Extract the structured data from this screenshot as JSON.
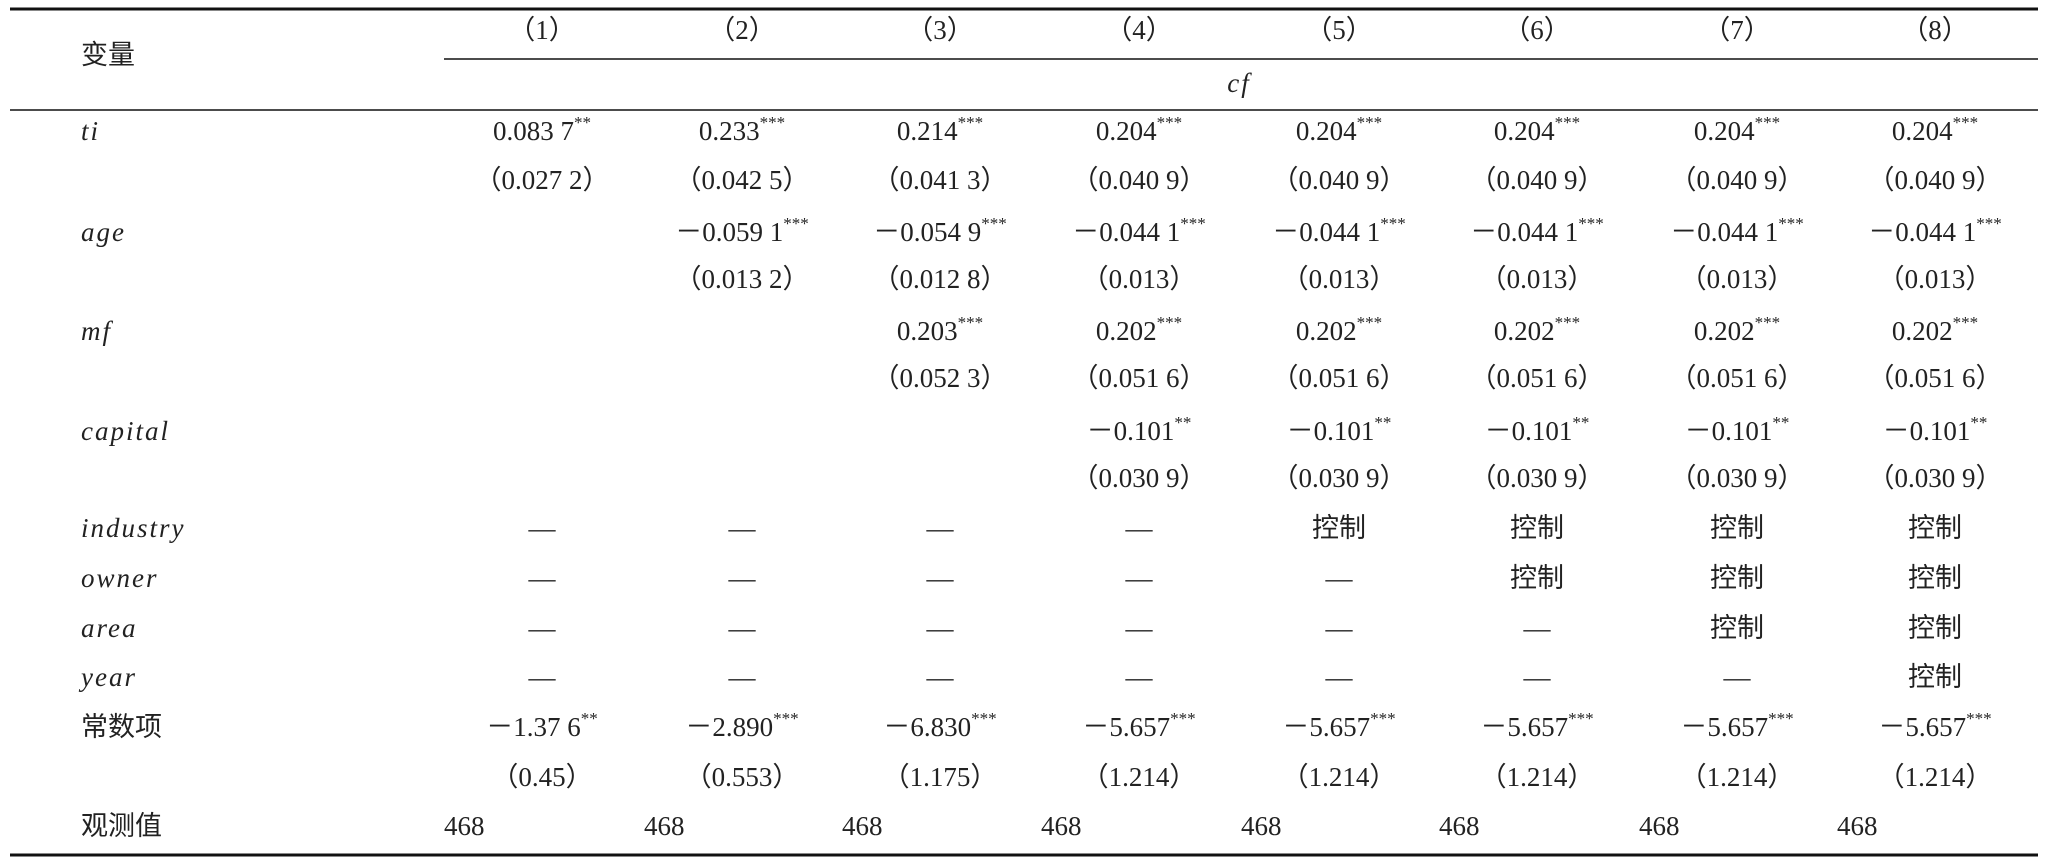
{
  "table": {
    "variable_label": "变量",
    "columns": [
      "（1）",
      "（2）",
      "（3）",
      "（4）",
      "（5）",
      "（6）",
      "（7）",
      "（8）"
    ],
    "dependent": "cf",
    "rows": [
      {
        "label": "ti",
        "cells": [
          {
            "v": "0.083 7",
            "sig": "**"
          },
          {
            "v": "0.233",
            "sig": "***"
          },
          {
            "v": "0.214",
            "sig": "***"
          },
          {
            "v": "0.204",
            "sig": "***"
          },
          {
            "v": "0.204",
            "sig": "***"
          },
          {
            "v": "0.204",
            "sig": "***"
          },
          {
            "v": "0.204",
            "sig": "***"
          },
          {
            "v": "0.204",
            "sig": "***"
          }
        ]
      },
      {
        "label": null,
        "cells": [
          "（0.027 2）",
          "（0.042 5）",
          "（0.041 3）",
          "（0.040 9）",
          "（0.040 9）",
          "（0.040 9）",
          "（0.040 9）",
          "（0.040 9）"
        ]
      },
      {
        "label": "age",
        "cells": [
          null,
          {
            "v": "－0.059 1",
            "sig": "***"
          },
          {
            "v": "－0.054 9",
            "sig": "***"
          },
          {
            "v": "－0.044 1",
            "sig": "***"
          },
          {
            "v": "－0.044 1",
            "sig": "***"
          },
          {
            "v": "－0.044 1",
            "sig": "***"
          },
          {
            "v": "－0.044 1",
            "sig": "***"
          },
          {
            "v": "－0.044 1",
            "sig": "***"
          }
        ]
      },
      {
        "label": null,
        "cells": [
          null,
          "（0.013 2）",
          "（0.012 8）",
          "（0.013）",
          "（0.013）",
          "（0.013）",
          "（0.013）",
          "（0.013）"
        ]
      },
      {
        "label": "mf",
        "cells": [
          null,
          null,
          {
            "v": "0.203",
            "sig": "***"
          },
          {
            "v": "0.202",
            "sig": "***"
          },
          {
            "v": "0.202",
            "sig": "***"
          },
          {
            "v": "0.202",
            "sig": "***"
          },
          {
            "v": "0.202",
            "sig": "***"
          },
          {
            "v": "0.202",
            "sig": "***"
          }
        ]
      },
      {
        "label": null,
        "cells": [
          null,
          null,
          "（0.052 3）",
          "（0.051 6）",
          "（0.051 6）",
          "（0.051 6）",
          "（0.051 6）",
          "（0.051 6）"
        ]
      },
      {
        "label": "capital",
        "cells": [
          null,
          null,
          null,
          {
            "v": "－0.101",
            "sig": "**"
          },
          {
            "v": "－0.101",
            "sig": "**"
          },
          {
            "v": "－0.101",
            "sig": "**"
          },
          {
            "v": "－0.101",
            "sig": "**"
          },
          {
            "v": "－0.101",
            "sig": "**"
          }
        ]
      },
      {
        "label": null,
        "cells": [
          null,
          null,
          null,
          "（0.030 9）",
          "（0.030 9）",
          "（0.030 9）",
          "（0.030 9）",
          "（0.030 9）"
        ]
      },
      {
        "label": "industry",
        "cells": [
          "—",
          "—",
          "—",
          "—",
          "控制",
          "控制",
          "控制",
          "控制"
        ]
      },
      {
        "label": "owner",
        "cells": [
          "—",
          "—",
          "—",
          "—",
          "—",
          "控制",
          "控制",
          "控制"
        ]
      },
      {
        "label": "area",
        "cells": [
          "—",
          "—",
          "—",
          "—",
          "—",
          "—",
          "控制",
          "控制"
        ]
      },
      {
        "label": "year",
        "cells": [
          "—",
          "—",
          "—",
          "—",
          "—",
          "—",
          "—",
          "控制"
        ]
      },
      {
        "label": "常数项",
        "cells": [
          {
            "v": "－1.37 6",
            "sig": "**"
          },
          {
            "v": "－2.890",
            "sig": "***"
          },
          {
            "v": "－6.830",
            "sig": "***"
          },
          {
            "v": "－5.657",
            "sig": "***"
          },
          {
            "v": "－5.657",
            "sig": "***"
          },
          {
            "v": "－5.657",
            "sig": "***"
          },
          {
            "v": "－5.657",
            "sig": "***"
          },
          {
            "v": "－5.657",
            "sig": "***"
          }
        ]
      },
      {
        "label": null,
        "cells": [
          "（0.45）",
          "（0.553）",
          "（1.175）",
          "（1.214）",
          "（1.214）",
          "（1.214）",
          "（1.214）",
          "（1.214）"
        ]
      },
      {
        "label": "观测值",
        "cells": [
          "468",
          "468",
          "468",
          "468",
          "468",
          "468",
          "468",
          "468"
        ]
      }
    ]
  }
}
